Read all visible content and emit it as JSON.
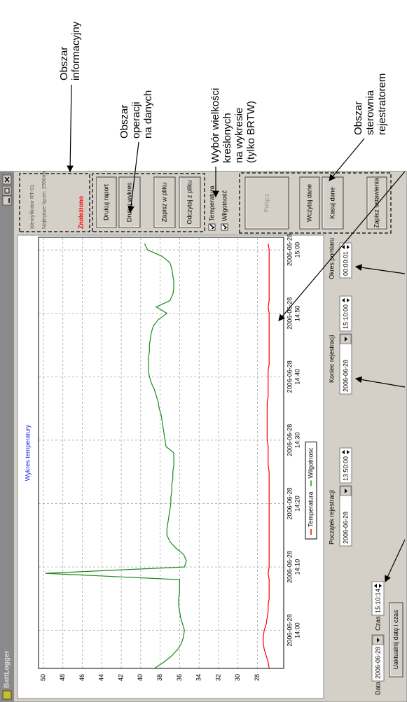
{
  "window": {
    "title": "BattLogger"
  },
  "chart_data": {
    "type": "line",
    "title": "Wykres temperatury",
    "x": [
      "2006-06-28 13:54",
      "2006-06-28 13:55",
      "2006-06-28 13:56",
      "2006-06-28 13:57",
      "2006-06-28 13:58",
      "2006-06-28 13:59",
      "2006-06-28 14:00",
      "2006-06-28 14:01",
      "2006-06-28 14:02",
      "2006-06-28 14:03",
      "2006-06-28 14:04",
      "2006-06-28 14:05",
      "2006-06-28 14:06",
      "2006-06-28 14:07",
      "2006-06-28 14:08",
      "2006-06-28 14:09",
      "2006-06-28 14:10",
      "2006-06-28 14:11",
      "2006-06-28 14:12",
      "2006-06-28 14:13",
      "2006-06-28 14:14",
      "2006-06-28 14:15",
      "2006-06-28 14:16",
      "2006-06-28 14:17",
      "2006-06-28 14:18",
      "2006-06-28 14:19",
      "2006-06-28 14:20",
      "2006-06-28 14:21",
      "2006-06-28 14:22",
      "2006-06-28 14:23",
      "2006-06-28 14:24",
      "2006-06-28 14:25",
      "2006-06-28 14:26",
      "2006-06-28 14:27",
      "2006-06-28 14:28",
      "2006-06-28 14:29",
      "2006-06-28 14:30",
      "2006-06-28 14:31",
      "2006-06-28 14:32",
      "2006-06-28 14:33",
      "2006-06-28 14:34",
      "2006-06-28 14:35",
      "2006-06-28 14:36",
      "2006-06-28 14:37",
      "2006-06-28 14:38",
      "2006-06-28 14:39",
      "2006-06-28 14:40",
      "2006-06-28 14:41",
      "2006-06-28 14:42",
      "2006-06-28 14:43",
      "2006-06-28 14:44",
      "2006-06-28 14:45",
      "2006-06-28 14:46",
      "2006-06-28 14:47",
      "2006-06-28 14:48",
      "2006-06-28 14:49",
      "2006-06-28 14:50",
      "2006-06-28 14:51",
      "2006-06-28 14:52",
      "2006-06-28 14:53",
      "2006-06-28 14:54",
      "2006-06-28 14:55",
      "2006-06-28 14:56",
      "2006-06-28 14:57",
      "2006-06-28 14:58",
      "2006-06-28 14:59",
      "2006-06-28 15:00",
      "2006-06-28 15:01"
    ],
    "series": [
      {
        "name": "Temperatura",
        "color": "#ff0000",
        "values": [
          26.8,
          26.9,
          27.1,
          27.3,
          27.4,
          27.4,
          27.3,
          27.1,
          27.0,
          26.9,
          26.9,
          26.8,
          26.8,
          26.8,
          26.8,
          26.9,
          26.8,
          26.8,
          26.8,
          26.8,
          26.8,
          26.8,
          26.8,
          26.8,
          26.8,
          26.8,
          26.8,
          26.8,
          26.8,
          26.8,
          26.8,
          26.8,
          26.9,
          26.9,
          26.9,
          26.9,
          27.0,
          27.0,
          27.0,
          27.0,
          27.0,
          27.0,
          27.0,
          26.9,
          26.9,
          26.9,
          26.9,
          26.9,
          26.8,
          26.8,
          26.8,
          26.8,
          26.8,
          26.8,
          26.8,
          26.8,
          26.8,
          26.9,
          26.8,
          26.8,
          26.8,
          26.8,
          26.8,
          26.8,
          26.8,
          26.8,
          26.8,
          26.9
        ]
      },
      {
        "name": "Wilgotnosc",
        "color": "#1a8a1a",
        "values": [
          38.6,
          37.6,
          36.8,
          36.2,
          35.8,
          35.6,
          35.5,
          35.7,
          35.9,
          36.0,
          36.1,
          36.1,
          36.0,
          36.0,
          36.0,
          49.8,
          35.5,
          35.3,
          35.6,
          36.4,
          37.0,
          37.3,
          37.3,
          37.2,
          37.1,
          37.0,
          36.9,
          36.9,
          36.8,
          36.8,
          36.7,
          36.7,
          36.6,
          36.6,
          36.6,
          37.4,
          37.5,
          37.6,
          37.7,
          37.8,
          37.9,
          38.1,
          38.2,
          38.4,
          38.6,
          38.9,
          39.1,
          39.2,
          39.2,
          39.2,
          39.1,
          39.1,
          39.0,
          38.9,
          38.7,
          38.2,
          37.3,
          38.4,
          37.0,
          36.7,
          36.6,
          36.6,
          36.7,
          36.8,
          37.0,
          37.8,
          39.3,
          39.6
        ]
      }
    ],
    "xlim": [
      "2006-06-28 13:54",
      "2006-06-28 15:02"
    ],
    "xticks": [
      {
        "value": "2006-06-28 14:00",
        "label": [
          "2006-06-28",
          "14:00"
        ]
      },
      {
        "value": "2006-06-28 14:10",
        "label": [
          "2006-06-28",
          "14:10"
        ]
      },
      {
        "value": "2006-06-28 14:20",
        "label": [
          "2006-06-28",
          "14:20"
        ]
      },
      {
        "value": "2006-06-28 14:30",
        "label": [
          "2006-06-28",
          "14:30"
        ]
      },
      {
        "value": "2006-06-28 14:40",
        "label": [
          "2006-06-28",
          "14:40"
        ]
      },
      {
        "value": "2006-06-28 14:50",
        "label": [
          "2006-06-28",
          "14:50"
        ]
      },
      {
        "value": "2006-06-28 15:00",
        "label": [
          "2006-06-28",
          "15:00"
        ]
      }
    ],
    "ylim": [
      25.3,
      50.5
    ],
    "yticks": [
      28,
      30,
      32,
      34,
      36,
      38,
      40,
      42,
      44,
      46,
      48,
      50
    ],
    "grid": true
  },
  "panel": {
    "info": [
      "Identyfikator RT-01",
      "Najlepsze łącze: 2950ms"
    ],
    "status": "Znaleziono",
    "data_buttons": [
      "Drukuj raport",
      "Drukuj wykres",
      "Zapisz w pliku",
      "Odczytaj z pliku"
    ],
    "checkboxes": [
      {
        "label": "Temperatura",
        "checked": true
      },
      {
        "label": "Wilgotność",
        "checked": true
      }
    ],
    "control_buttons": [
      "Połącz",
      "Wczytaj dane",
      "Kasuj dane",
      "Zapisz ustawienia"
    ]
  },
  "bottom": {
    "date_label": "Data",
    "date": "2006-06-28",
    "time_label": "Czas",
    "time": "15:10:14",
    "update_button": "Uaktualnij datę i czas",
    "start_label": "Początek rejestracji",
    "start_date": "2006-06-28",
    "start_time": "13:50:00",
    "end_label": "Koniec rejestracji",
    "end_date": "2006-06-28",
    "end_time": "15:10:00",
    "period_label": "Okres pomiaru",
    "period": "00:00:01"
  },
  "annotations": [
    {
      "lines": [
        "Obszar",
        "informacyjny"
      ]
    },
    {
      "lines": [
        "Obszar",
        "operacji",
        "na danych"
      ]
    },
    {
      "lines": [
        "Wybór wielkości",
        "kreślonych",
        "na wykresie",
        "(tylko BRTW)"
      ]
    },
    {
      "lines": [
        "Obszar",
        "sterownia",
        "rejestratorem"
      ]
    }
  ]
}
